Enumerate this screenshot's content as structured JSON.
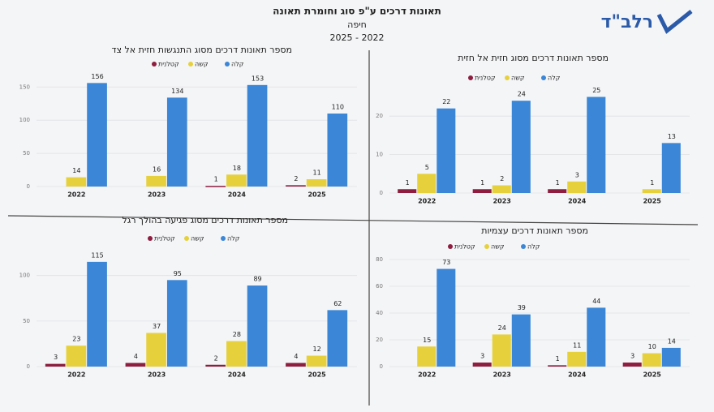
{
  "header": {
    "title": "תאונות דרכים ע\"פ סוג וחומרת תאונה",
    "city": "חיפה",
    "period": "2025 - 2022",
    "logo": "רלב\"ד"
  },
  "chart_data": [
    {
      "type": "bar",
      "title": "מספר תאונות דרכים מסוג התנגשות חזית אל צד",
      "categories": [
        "2022",
        "2023",
        "2024",
        "2025"
      ],
      "series": [
        {
          "name": "קטלנית",
          "color": "#8e1d3f",
          "values": [
            null,
            null,
            1,
            2
          ]
        },
        {
          "name": "קשה",
          "color": "#e6d13c",
          "values": [
            14,
            16,
            18,
            11
          ]
        },
        {
          "name": "קלה",
          "color": "#3b86d6",
          "values": [
            156,
            134,
            153,
            110
          ]
        }
      ],
      "ylim": [
        0,
        165
      ],
      "yticks": [
        0,
        50,
        100,
        150
      ],
      "grid": true
    },
    {
      "type": "bar",
      "title": "מספר תאונות דרכים מסוג חזית אל חזית",
      "categories": [
        "2022",
        "2023",
        "2024",
        "2025"
      ],
      "series": [
        {
          "name": "קטלנית",
          "color": "#8e1d3f",
          "values": [
            1,
            1,
            1,
            null
          ]
        },
        {
          "name": "קשה",
          "color": "#e6d13c",
          "values": [
            5,
            2,
            3,
            1
          ]
        },
        {
          "name": "קלה",
          "color": "#3b86d6",
          "values": [
            22,
            24,
            25,
            13
          ]
        }
      ],
      "ylim": [
        0,
        27
      ],
      "yticks": [
        0,
        10,
        20
      ],
      "grid": true
    },
    {
      "type": "bar",
      "title": "מספר תאונות דרכים מסוג פגיעה בהולך רגל",
      "categories": [
        "2022",
        "2023",
        "2024",
        "2025"
      ],
      "series": [
        {
          "name": "קטלנית",
          "color": "#8e1d3f",
          "values": [
            3,
            4,
            2,
            4
          ]
        },
        {
          "name": "קשה",
          "color": "#e6d13c",
          "values": [
            23,
            37,
            28,
            12
          ]
        },
        {
          "name": "קלה",
          "color": "#3b86d6",
          "values": [
            115,
            95,
            89,
            62
          ]
        }
      ],
      "ylim": [
        0,
        122
      ],
      "yticks": [
        0,
        50,
        100
      ],
      "grid": true
    },
    {
      "type": "bar",
      "title": "מספר תאונות דרכים עצמיות",
      "categories": [
        "2022",
        "2023",
        "2024",
        "2025"
      ],
      "series": [
        {
          "name": "קטלנית",
          "color": "#8e1d3f",
          "values": [
            null,
            3,
            1,
            3
          ]
        },
        {
          "name": "קשה",
          "color": "#e6d13c",
          "values": [
            15,
            24,
            11,
            10
          ]
        },
        {
          "name": "קלה",
          "color": "#3b86d6",
          "values": [
            73,
            39,
            44,
            14
          ]
        }
      ],
      "ylim": [
        0,
        80
      ],
      "yticks": [
        0,
        20,
        40,
        60,
        80
      ],
      "grid": true
    }
  ]
}
